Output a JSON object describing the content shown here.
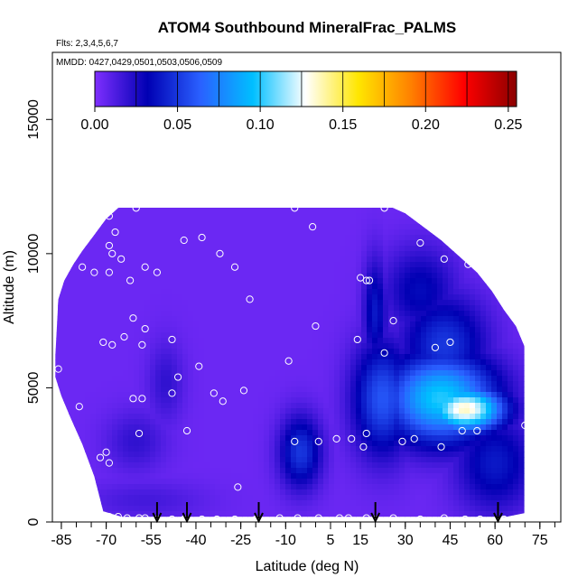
{
  "chart_data": {
    "type": "heatmap",
    "title": "ATOM4 Southbound MineralFrac_PALMS",
    "flights_note": "Flts: 2,3,4,5,6,7",
    "dates_note": "MMDD: 0427,0429,0501,0503,0506,0509",
    "xlabel": "Latitude (deg N)",
    "ylabel": "Altitude (m)",
    "xlim": [
      -88,
      82
    ],
    "ylim": [
      0,
      17500
    ],
    "xticks": [
      -85,
      -70,
      -55,
      -40,
      -25,
      -10,
      5,
      15,
      30,
      45,
      60,
      75
    ],
    "yticks": [
      0,
      5000,
      10000,
      15000
    ],
    "colorbar": {
      "min": 0.0,
      "max": 0.255,
      "ticks": [
        "0.00",
        "0.05",
        "0.10",
        "0.15",
        "0.20",
        "0.25"
      ],
      "tick_values": [
        0.0,
        0.05,
        0.1,
        0.15,
        0.2,
        0.25
      ],
      "colors": [
        "#7f2fff",
        "#0000b3",
        "#2a60ff",
        "#00bfff",
        "#ffffff",
        "#ffe600",
        "#ff8000",
        "#ff0000",
        "#8b0000"
      ]
    },
    "blobs": [
      {
        "lat": 22.5,
        "alt": 4600,
        "rlat": 10.0,
        "ralt": 2100,
        "v": 0.06
      },
      {
        "lat": 42,
        "alt": 4600,
        "rlat": 18.5,
        "ralt": 1650,
        "v": 0.1
      },
      {
        "lat": 50,
        "alt": 4200,
        "rlat": 13,
        "ralt": 850,
        "v": 0.135
      },
      {
        "lat": 43,
        "alt": 6600,
        "rlat": 14,
        "ralt": 1800,
        "v": 0.05
      },
      {
        "lat": 35,
        "alt": 8600,
        "rlat": 12,
        "ralt": 1600,
        "v": 0.035
      },
      {
        "lat": 20,
        "alt": 7800,
        "rlat": 4,
        "ralt": 2000,
        "v": 0.04
      },
      {
        "lat": 60,
        "alt": 2200,
        "rlat": 13,
        "ralt": 1800,
        "v": 0.04
      },
      {
        "lat": -5,
        "alt": 2600,
        "rlat": 7,
        "ralt": 1350,
        "v": 0.05
      },
      {
        "lat": -50,
        "alt": 5200,
        "rlat": 6,
        "ralt": 1500,
        "v": 0.02
      },
      {
        "lat": -60,
        "alt": 3000,
        "rlat": 10,
        "ralt": 1100,
        "v": 0.02
      },
      {
        "lat": -57,
        "alt": 800,
        "rlat": 20,
        "ralt": 700,
        "v": 0.015
      }
    ],
    "flight_markers_lat": [
      -53,
      -43,
      -19,
      20,
      61
    ],
    "samples": [
      [
        -86,
        5700
      ],
      [
        -79,
        4300
      ],
      [
        -78,
        9500
      ],
      [
        -74,
        9300
      ],
      [
        -69,
        11400
      ],
      [
        -67,
        10800
      ],
      [
        -68,
        10000
      ],
      [
        -69,
        10300
      ],
      [
        -65,
        9800
      ],
      [
        -69,
        9300
      ],
      [
        -62,
        9000
      ],
      [
        -57,
        9500
      ],
      [
        -53,
        9300
      ],
      [
        -44,
        10500
      ],
      [
        -38,
        10600
      ],
      [
        -32,
        10000
      ],
      [
        -27,
        9500
      ],
      [
        -22,
        8300
      ],
      [
        -61,
        7600
      ],
      [
        -64,
        6900
      ],
      [
        -71,
        6700
      ],
      [
        -68,
        6600
      ],
      [
        -58,
        6600
      ],
      [
        -57,
        7200
      ],
      [
        -48,
        6800
      ],
      [
        -46,
        5400
      ],
      [
        -39,
        5800
      ],
      [
        -58,
        4600
      ],
      [
        -61,
        4600
      ],
      [
        -48,
        4800
      ],
      [
        -43,
        3400
      ],
      [
        -34,
        4800
      ],
      [
        -31,
        4500
      ],
      [
        -24,
        4900
      ],
      [
        -59,
        3300
      ],
      [
        -70,
        2600
      ],
      [
        -72,
        2400
      ],
      [
        -69,
        2200
      ],
      [
        -60,
        11700
      ],
      [
        -7,
        11700
      ],
      [
        -1,
        11000
      ],
      [
        0,
        7300
      ],
      [
        -9,
        6000
      ],
      [
        -7,
        3000
      ],
      [
        1,
        3000
      ],
      [
        7,
        3100
      ],
      [
        15,
        9100
      ],
      [
        17,
        9000
      ],
      [
        18,
        9000
      ],
      [
        23,
        6300
      ],
      [
        14,
        6800
      ],
      [
        26,
        7500
      ],
      [
        35,
        10400
      ],
      [
        43,
        9800
      ],
      [
        51,
        9600
      ],
      [
        40,
        6500
      ],
      [
        45,
        6700
      ],
      [
        17,
        3300
      ],
      [
        16,
        2800
      ],
      [
        12,
        3100
      ],
      [
        29,
        3000
      ],
      [
        33,
        3100
      ],
      [
        42,
        2800
      ],
      [
        49,
        3400
      ],
      [
        54,
        3400
      ],
      [
        71,
        7300
      ],
      [
        70,
        3600
      ],
      [
        -26,
        1300
      ],
      [
        23,
        11700
      ],
      [
        -69,
        200
      ],
      [
        -67,
        100
      ],
      [
        -66,
        200
      ],
      [
        -63,
        150
      ],
      [
        -59,
        150
      ],
      [
        -57,
        150
      ],
      [
        -53,
        100
      ],
      [
        -48,
        100
      ],
      [
        -44,
        100
      ],
      [
        -38,
        100
      ],
      [
        -33,
        100
      ],
      [
        -27,
        100
      ],
      [
        -20,
        100
      ],
      [
        -12,
        150
      ],
      [
        -6,
        150
      ],
      [
        1,
        150
      ],
      [
        8,
        150
      ],
      [
        11,
        150
      ],
      [
        17,
        150
      ],
      [
        20,
        100
      ],
      [
        26,
        150
      ],
      [
        35,
        100
      ],
      [
        43,
        150
      ],
      [
        50,
        100
      ],
      [
        55,
        100
      ],
      [
        63,
        100
      ],
      [
        71,
        100
      ]
    ]
  }
}
